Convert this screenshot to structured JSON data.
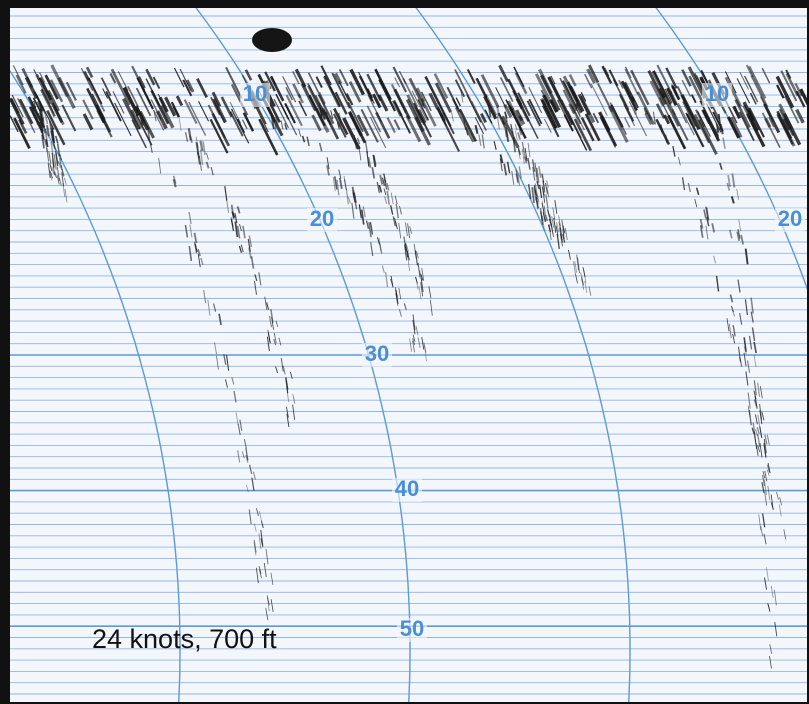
{
  "depth_labels": [
    {
      "label": "10"
    },
    {
      "label": "20"
    },
    {
      "label": "30"
    },
    {
      "label": "40"
    },
    {
      "label": "50"
    },
    {
      "label": "10"
    },
    {
      "label": "20"
    }
  ],
  "caption": "24 knots, 700 ft"
}
